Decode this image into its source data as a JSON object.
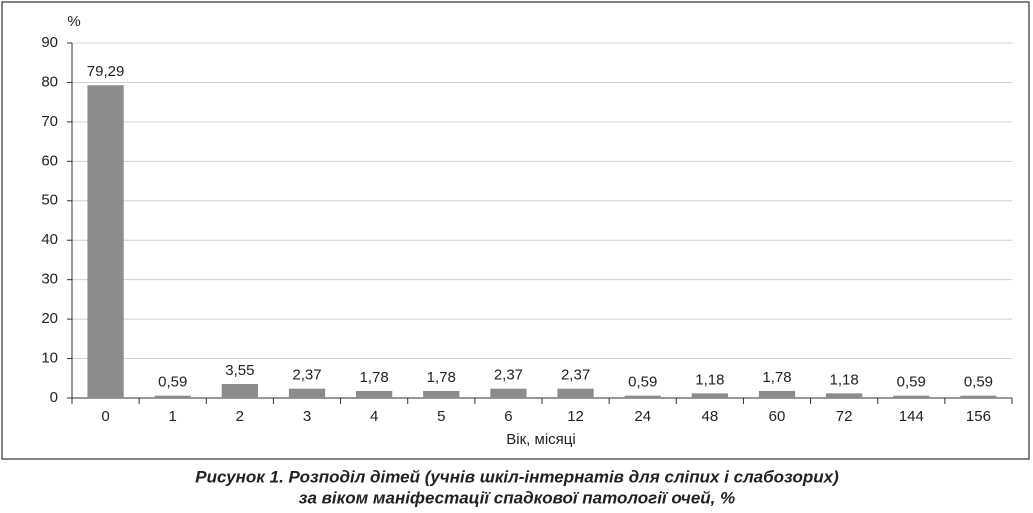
{
  "chart_data": {
    "type": "bar",
    "title": [
      "Рисунок 1.  Розподіл дітей (учнів шкіл-інтернатів для сліпих і слабозорих)",
      "за віком маніфестації спадкової патології очей, %"
    ],
    "y_label": "%",
    "x_label": "Вік, місяці",
    "categories": [
      "0",
      "1",
      "2",
      "3",
      "4",
      "5",
      "6",
      "12",
      "24",
      "48",
      "60",
      "72",
      "144",
      "156"
    ],
    "values": [
      79.29,
      0.59,
      3.55,
      2.37,
      1.78,
      1.78,
      2.37,
      2.37,
      0.59,
      1.18,
      1.78,
      1.18,
      0.59,
      0.59
    ],
    "value_labels": [
      "79,29",
      "0,59",
      "3,55",
      "2,37",
      "1,78",
      "1,78",
      "2,37",
      "2,37",
      "0,59",
      "1,18",
      "1,78",
      "1,18",
      "0,59",
      "0,59"
    ],
    "color": "#8c8c8c",
    "ylim": [
      0,
      90
    ],
    "yticks": [
      0,
      10,
      20,
      30,
      40,
      50,
      60,
      70,
      80,
      90
    ],
    "grid": true
  }
}
